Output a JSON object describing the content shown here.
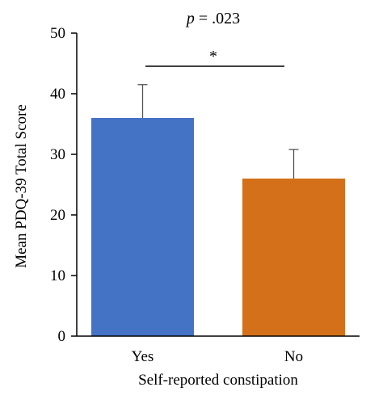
{
  "chart_data": {
    "type": "bar",
    "categories": [
      "Yes",
      "No"
    ],
    "values": [
      36,
      26
    ],
    "errors": [
      5.5,
      4.8
    ],
    "colors": [
      "#4472C4",
      "#D4701A"
    ],
    "xlabel": "Self-reported constipation",
    "ylabel": "Mean PDQ-39 Total Score",
    "ylim": [
      0,
      50
    ],
    "yticks": [
      0,
      10,
      20,
      30,
      40,
      50
    ],
    "annotation": {
      "p_label": "p",
      "p_value": " = .023",
      "significance": "*"
    }
  }
}
